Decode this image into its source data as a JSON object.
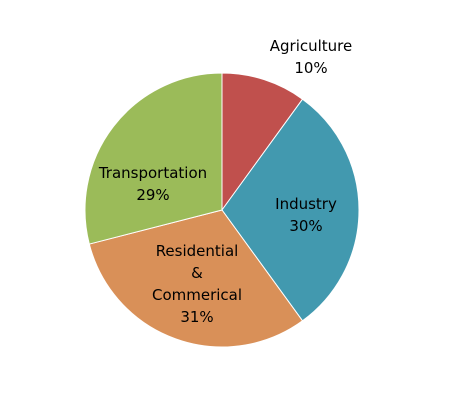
{
  "chart_data": {
    "type": "pie",
    "title": "",
    "slices": [
      {
        "label_lines": [
          "Agriculture"
        ],
        "pct_label": "10%",
        "value": 10,
        "color": "#C0504D"
      },
      {
        "label_lines": [
          "Industry"
        ],
        "pct_label": "30%",
        "value": 30,
        "color": "#4299AF"
      },
      {
        "label_lines": [
          "Residential",
          "&",
          "Commerical"
        ],
        "pct_label": "31%",
        "value": 31,
        "color": "#D99058"
      },
      {
        "label_lines": [
          "Transportation"
        ],
        "pct_label": "29%",
        "value": 29,
        "color": "#9BBB59"
      }
    ],
    "legend": "none"
  }
}
